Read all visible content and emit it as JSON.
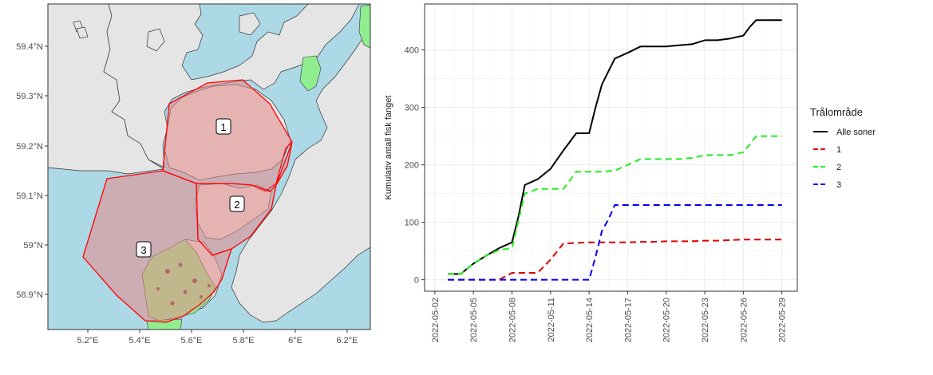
{
  "map": {
    "lat_labels": [
      "59.4°N",
      "59.3°N",
      "59.2°N",
      "59.1°N",
      "59°N",
      "58.9°N"
    ],
    "lon_labels": [
      "5.2°E",
      "5.4°E",
      "5.6°E",
      "5.8°E",
      "6°E",
      "6.2°E"
    ],
    "zone_labels": [
      "1",
      "2",
      "3"
    ],
    "colors": {
      "sea": "#add8e6",
      "land": "#e5e5e5",
      "park": "#90ee90",
      "zone_fill": "#e88a8a",
      "zone_border": "#ff0000"
    }
  },
  "chart_data": {
    "type": "line",
    "title": "",
    "xlabel": "",
    "ylabel": "Kumulativ antall fisk fanget",
    "ylim": [
      -20,
      480
    ],
    "y_ticks": [
      0,
      100,
      200,
      300,
      400
    ],
    "x_tick_labels": [
      "2022-05-02",
      "2022-05-05",
      "2022-05-08",
      "2022-05-11",
      "2022-05-14",
      "2022-05-17",
      "2022-05-20",
      "2022-05-23",
      "2022-05-26",
      "2022-05-29"
    ],
    "x_tick_days": [
      2,
      5,
      8,
      11,
      14,
      17,
      20,
      23,
      26,
      29
    ],
    "xlim_days": [
      1.2,
      30.2
    ],
    "grid": true,
    "legend": {
      "title": "Trålområde",
      "placement": "right"
    },
    "series": [
      {
        "name": "Alle soner",
        "color": "#000000",
        "dash": "solid",
        "x": [
          3,
          4,
          5,
          6,
          7,
          8,
          8.5,
          9,
          10,
          11,
          12,
          13,
          13.5,
          14,
          14.5,
          15,
          16,
          17,
          18,
          19,
          20,
          21,
          22,
          23,
          24,
          25,
          26,
          26.5,
          27,
          28,
          29
        ],
        "y": [
          10,
          10,
          28,
          42,
          55,
          65,
          110,
          165,
          175,
          193,
          225,
          255,
          255,
          255,
          300,
          340,
          385,
          395,
          406,
          406,
          406,
          408,
          410,
          417,
          417,
          420,
          425,
          440,
          452,
          452,
          452
        ]
      },
      {
        "name": "1",
        "color": "#dd0000",
        "dash": "dashed",
        "x": [
          3,
          4,
          5,
          6,
          7,
          8,
          9,
          10,
          11,
          12,
          13,
          14,
          15,
          16,
          17,
          18,
          19,
          20,
          21,
          22,
          23,
          24,
          25,
          26,
          27,
          28,
          29
        ],
        "y": [
          0,
          0,
          0,
          0,
          0,
          12,
          12,
          12,
          35,
          63,
          64,
          65,
          65,
          65,
          65,
          66,
          66,
          67,
          67,
          67,
          68,
          68,
          69,
          70,
          70,
          70,
          70
        ]
      },
      {
        "name": "2",
        "color": "#22ee22",
        "dash": "dashed",
        "x": [
          3,
          4,
          5,
          6,
          7,
          8,
          9,
          10,
          11,
          12,
          13,
          14,
          15,
          16,
          17,
          18,
          19,
          20,
          21,
          22,
          23,
          24,
          25,
          26,
          27,
          28,
          29
        ],
        "y": [
          10,
          10,
          28,
          42,
          52,
          55,
          150,
          158,
          158,
          158,
          188,
          188,
          188,
          190,
          200,
          210,
          210,
          210,
          210,
          212,
          217,
          217,
          217,
          222,
          250,
          250,
          250
        ]
      },
      {
        "name": "3",
        "color": "#0000ee",
        "dash": "dashed",
        "x": [
          3,
          4,
          5,
          6,
          7,
          8,
          9,
          10,
          11,
          12,
          13,
          14,
          14.5,
          15,
          15.5,
          16,
          17,
          18,
          19,
          20,
          21,
          22,
          23,
          24,
          25,
          26,
          27,
          28,
          29
        ],
        "y": [
          0,
          0,
          0,
          0,
          0,
          0,
          0,
          0,
          0,
          0,
          0,
          0,
          40,
          85,
          105,
          130,
          130,
          130,
          130,
          130,
          130,
          130,
          130,
          130,
          130,
          130,
          130,
          130,
          130
        ]
      }
    ]
  }
}
